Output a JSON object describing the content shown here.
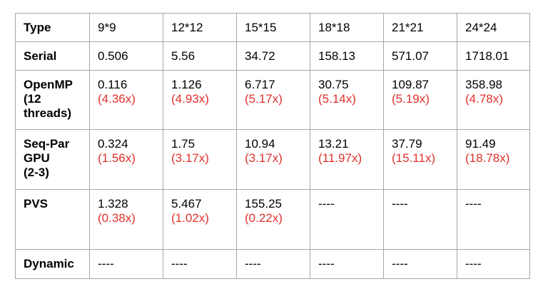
{
  "columns": [
    "Type",
    "9*9",
    "12*12",
    "15*15",
    "18*18",
    "21*21",
    "24*24"
  ],
  "rows": [
    {
      "label_lines": [
        "Serial"
      ],
      "cells": [
        {
          "value": "0.506",
          "speedup": ""
        },
        {
          "value": "5.56",
          "speedup": ""
        },
        {
          "value": "34.72",
          "speedup": ""
        },
        {
          "value": "158.13",
          "speedup": ""
        },
        {
          "value": "571.07",
          "speedup": ""
        },
        {
          "value": "1718.01",
          "speedup": ""
        }
      ]
    },
    {
      "label_lines": [
        "OpenMP",
        "(12",
        "threads)"
      ],
      "cells": [
        {
          "value": "0.116",
          "speedup": "(4.36x)"
        },
        {
          "value": "1.126",
          "speedup": "(4.93x)"
        },
        {
          "value": "6.717",
          "speedup": "(5.17x)"
        },
        {
          "value": "30.75",
          "speedup": "(5.14x)"
        },
        {
          "value": "109.87",
          "speedup": "(5.19x)"
        },
        {
          "value": "358.98",
          "speedup": "(4.78x)"
        }
      ]
    },
    {
      "label_lines": [
        "Seq-Par",
        "GPU",
        "(2-3)"
      ],
      "cells": [
        {
          "value": "0.324",
          "speedup": "(1.56x)"
        },
        {
          "value": "1.75",
          "speedup": "(3.17x)"
        },
        {
          "value": "10.94",
          "speedup": "(3.17x)"
        },
        {
          "value": "13.21",
          "speedup": "(11.97x)"
        },
        {
          "value": "37.79",
          "speedup": "(15.11x)"
        },
        {
          "value": "91.49",
          "speedup": "(18.78x)"
        }
      ]
    },
    {
      "label_lines": [
        "PVS"
      ],
      "cells": [
        {
          "value": "1.328",
          "speedup": "(0.38x)"
        },
        {
          "value": "5.467",
          "speedup": "(1.02x)"
        },
        {
          "value": "155.25",
          "speedup": "(0.22x)"
        },
        {
          "value": "----",
          "speedup": ""
        },
        {
          "value": "----",
          "speedup": ""
        },
        {
          "value": "----",
          "speedup": ""
        }
      ]
    },
    {
      "label_lines": [
        "Dynamic"
      ],
      "cells": [
        {
          "value": "----",
          "speedup": ""
        },
        {
          "value": "----",
          "speedup": ""
        },
        {
          "value": "----",
          "speedup": ""
        },
        {
          "value": "----",
          "speedup": ""
        },
        {
          "value": "----",
          "speedup": ""
        },
        {
          "value": "----",
          "speedup": ""
        }
      ]
    }
  ],
  "colors": {
    "speedup_text": "#e0312d",
    "border": "#a6a6a6"
  }
}
